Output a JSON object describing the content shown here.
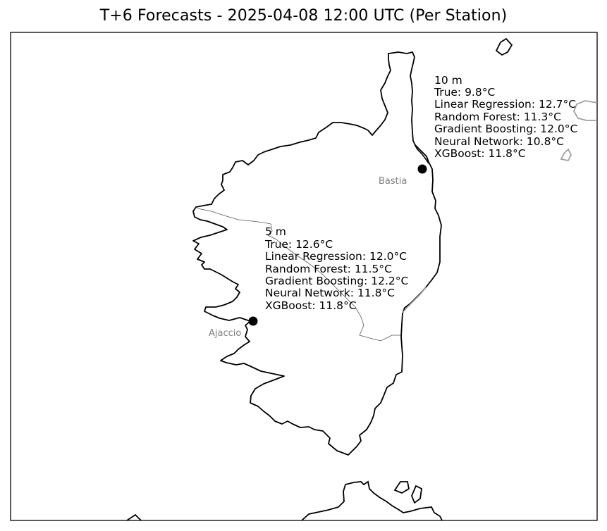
{
  "title": "T+6 Forecasts - 2025-04-08 12:00 UTC (Per Station)",
  "stations": [
    {
      "name": "Bastia",
      "elevation": "10 m",
      "lines": [
        "True: 9.8°C",
        "Linear Regression: 12.7°C",
        "Random Forest: 11.3°C",
        "Gradient Boosting: 12.0°C",
        "Neural Network: 10.8°C",
        "XGBoost: 11.8°C"
      ]
    },
    {
      "name": "Ajaccio",
      "elevation": "5 m",
      "lines": [
        "True: 12.6°C",
        "Linear Regression: 12.0°C",
        "Random Forest: 11.5°C",
        "Gradient Boosting: 12.2°C",
        "Neural Network: 11.8°C",
        "XGBoost: 11.8°C"
      ]
    }
  ],
  "colors": {
    "coastline": "#000000",
    "border": "#a0a0a0",
    "marker": "#000000",
    "city_label": "#808080"
  }
}
